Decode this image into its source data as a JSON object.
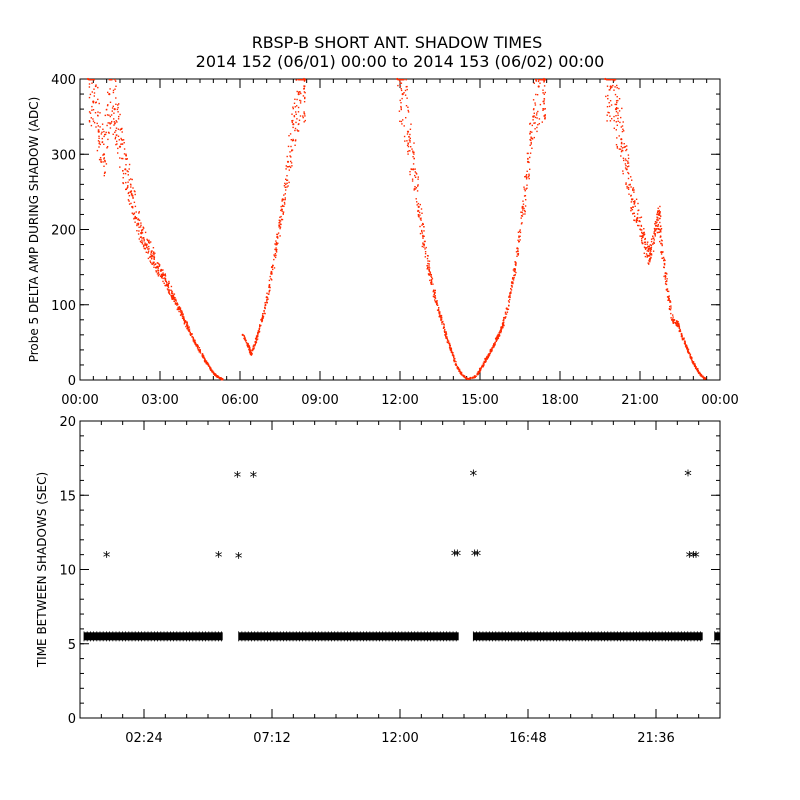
{
  "title": {
    "line1": "RBSP-B SHORT ANT. SHADOW TIMES",
    "line2": "2014 152 (06/01) 00:00 to 2014 153 (06/02) 00:00"
  },
  "colors": {
    "amp": "#ff2a00",
    "gap": "#000000",
    "axis": "#000000"
  },
  "chart_data": [
    {
      "type": "scatter",
      "ylabel": "Probe 5 DELTA AMP DURING SHADOW (ADC)",
      "xlabel": "",
      "xunit": "hours",
      "xlim": [
        0,
        24
      ],
      "ylim": [
        0,
        400
      ],
      "xticks": [
        0,
        3,
        6,
        9,
        12,
        15,
        18,
        21,
        24
      ],
      "xtick_labels": [
        "00:00",
        "03:00",
        "06:00",
        "09:00",
        "12:00",
        "15:00",
        "18:00",
        "21:00",
        "00:00"
      ],
      "yticks": [
        0,
        100,
        200,
        300,
        400
      ],
      "ytick_labels": [
        "0",
        "100",
        "200",
        "300",
        "400"
      ],
      "grid": false,
      "series": [
        {
          "marker": "dot",
          "points": [
            [
              0.3,
              400
            ],
            [
              0.5,
              370
            ],
            [
              0.7,
              330
            ],
            [
              0.9,
              300
            ],
            [
              1.1,
              380
            ],
            [
              1.3,
              360
            ],
            [
              1.5,
              310
            ],
            [
              1.7,
              280
            ],
            [
              1.9,
              250
            ],
            [
              2.1,
              215
            ],
            [
              2.3,
              195
            ],
            [
              2.5,
              180
            ],
            [
              2.7,
              165
            ],
            [
              2.9,
              150
            ],
            [
              3.1,
              140
            ],
            [
              3.3,
              125
            ],
            [
              3.5,
              110
            ],
            [
              3.7,
              95
            ],
            [
              3.9,
              80
            ],
            [
              4.1,
              65
            ],
            [
              4.3,
              50
            ],
            [
              4.5,
              38
            ],
            [
              4.7,
              25
            ],
            [
              4.9,
              14
            ],
            [
              5.1,
              6
            ],
            [
              5.3,
              2
            ],
            [
              6.1,
              60
            ],
            [
              6.3,
              45
            ],
            [
              6.4,
              35
            ],
            [
              6.6,
              55
            ],
            [
              6.8,
              80
            ],
            [
              7.0,
              110
            ],
            [
              7.2,
              150
            ],
            [
              7.4,
              190
            ],
            [
              7.6,
              240
            ],
            [
              7.8,
              290
            ],
            [
              8.0,
              340
            ],
            [
              8.2,
              380
            ],
            [
              8.4,
              400
            ],
            [
              11.9,
              400
            ],
            [
              12.1,
              380
            ],
            [
              12.3,
              330
            ],
            [
              12.5,
              280
            ],
            [
              12.7,
              230
            ],
            [
              12.9,
              180
            ],
            [
              13.1,
              140
            ],
            [
              13.3,
              110
            ],
            [
              13.5,
              85
            ],
            [
              13.7,
              60
            ],
            [
              13.9,
              40
            ],
            [
              14.1,
              20
            ],
            [
              14.3,
              8
            ],
            [
              14.5,
              2
            ],
            [
              14.8,
              5
            ],
            [
              15.0,
              15
            ],
            [
              15.2,
              28
            ],
            [
              15.4,
              40
            ],
            [
              15.6,
              55
            ],
            [
              15.8,
              70
            ],
            [
              16.0,
              95
            ],
            [
              16.2,
              130
            ],
            [
              16.4,
              175
            ],
            [
              16.6,
              230
            ],
            [
              16.8,
              290
            ],
            [
              17.0,
              350
            ],
            [
              17.2,
              390
            ],
            [
              17.4,
              400
            ],
            [
              19.7,
              400
            ],
            [
              19.9,
              390
            ],
            [
              20.1,
              360
            ],
            [
              20.3,
              320
            ],
            [
              20.5,
              280
            ],
            [
              20.7,
              240
            ],
            [
              20.9,
              215
            ],
            [
              21.1,
              190
            ],
            [
              21.3,
              165
            ],
            [
              21.4,
              175
            ],
            [
              21.6,
              205
            ],
            [
              21.7,
              220
            ],
            [
              21.8,
              170
            ],
            [
              22.0,
              120
            ],
            [
              22.2,
              80
            ],
            [
              22.4,
              75
            ],
            [
              22.6,
              55
            ],
            [
              22.8,
              38
            ],
            [
              23.0,
              22
            ],
            [
              23.2,
              10
            ],
            [
              23.4,
              3
            ]
          ]
        }
      ]
    },
    {
      "type": "scatter",
      "ylabel": "TIME BETWEEN SHADOWS (SEC)",
      "xlabel": "",
      "xunit": "hours",
      "xlim": [
        0,
        24
      ],
      "ylim": [
        0,
        20
      ],
      "xticks": [
        2.4,
        7.2,
        12.0,
        16.8,
        21.6
      ],
      "xtick_labels": [
        "02:24",
        "07:12",
        "12:00",
        "16:48",
        "21:36"
      ],
      "yticks": [
        0,
        5,
        10,
        15,
        20
      ],
      "ytick_labels": [
        "0",
        "5",
        "10",
        "15",
        "20"
      ],
      "grid": false,
      "series": [
        {
          "marker": "asterisk",
          "baseline_segments": [
            {
              "from": 0.15,
              "to": 5.35,
              "value": 5.5
            },
            {
              "from": 5.95,
              "to": 14.2,
              "value": 5.5
            },
            {
              "from": 14.75,
              "to": 23.35,
              "value": 5.5
            },
            {
              "from": 23.8,
              "to": 24.0,
              "value": 5.5
            }
          ],
          "points": [
            [
              1.0,
              10.9
            ],
            [
              5.2,
              10.9
            ],
            [
              5.9,
              16.3
            ],
            [
              5.95,
              10.85
            ],
            [
              6.5,
              16.3
            ],
            [
              14.05,
              11.0
            ],
            [
              14.15,
              11.0
            ],
            [
              14.75,
              16.4
            ],
            [
              14.8,
              11.0
            ],
            [
              14.9,
              11.0
            ],
            [
              22.8,
              16.4
            ],
            [
              22.85,
              10.9
            ],
            [
              23.0,
              10.9
            ],
            [
              23.1,
              10.9
            ]
          ]
        }
      ]
    }
  ]
}
